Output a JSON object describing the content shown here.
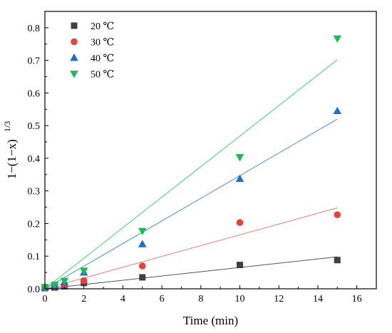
{
  "chart_data": {
    "type": "scatter",
    "xlabel": "Time (min)",
    "ylabel": {
      "main": "1−(1−x)",
      "sup": "1/3"
    },
    "xlim": [
      0,
      17
    ],
    "ylim": [
      0,
      0.85
    ],
    "xticks": [
      0,
      2,
      4,
      6,
      8,
      10,
      12,
      14,
      16
    ],
    "yticks": [
      0.0,
      0.1,
      0.2,
      0.3,
      0.4,
      0.5,
      0.6,
      0.7,
      0.8
    ],
    "xtick_labels": [
      "0",
      "2",
      "4",
      "6",
      "8",
      "10",
      "12",
      "14",
      "16"
    ],
    "ytick_labels": [
      "0.0",
      "0.1",
      "0.2",
      "0.3",
      "0.4",
      "0.5",
      "0.6",
      "0.7",
      "0.8"
    ],
    "grid": false,
    "legend_position": "top-left",
    "series": [
      {
        "name": "20 ℃",
        "marker": "square",
        "color": "#404040",
        "line_color": "#555555",
        "x": [
          0,
          0.5,
          1,
          2,
          5,
          10,
          15
        ],
        "y": [
          0.002,
          0.004,
          0.008,
          0.018,
          0.035,
          0.073,
          0.088
        ],
        "fit": [
          [
            0,
            0
          ],
          [
            15,
            0.098
          ]
        ]
      },
      {
        "name": "30 ℃",
        "marker": "circle",
        "color": "#e8413c",
        "line_color": "#f07a73",
        "x": [
          0,
          0.5,
          1,
          2,
          5,
          10,
          15
        ],
        "y": [
          0.003,
          0.006,
          0.012,
          0.025,
          0.07,
          0.203,
          0.227
        ],
        "fit": [
          [
            0,
            0
          ],
          [
            15,
            0.248
          ]
        ]
      },
      {
        "name": "40 ℃",
        "marker": "triangle-up",
        "color": "#1f6fd1",
        "line_color": "#4a8fde",
        "x": [
          0,
          0.5,
          1,
          2,
          5,
          10,
          15
        ],
        "y": [
          0.004,
          0.01,
          0.02,
          0.05,
          0.137,
          0.337,
          0.545
        ],
        "fit": [
          [
            0,
            0
          ],
          [
            15,
            0.52
          ]
        ]
      },
      {
        "name": "50 ℃",
        "marker": "triangle-down",
        "color": "#1db954",
        "line_color": "#3ccf75",
        "x": [
          0,
          0.5,
          1,
          2,
          5,
          10,
          15
        ],
        "y": [
          0.005,
          0.012,
          0.024,
          0.055,
          0.177,
          0.403,
          0.767
        ],
        "fit": [
          [
            0,
            0
          ],
          [
            15,
            0.702
          ]
        ]
      }
    ]
  }
}
